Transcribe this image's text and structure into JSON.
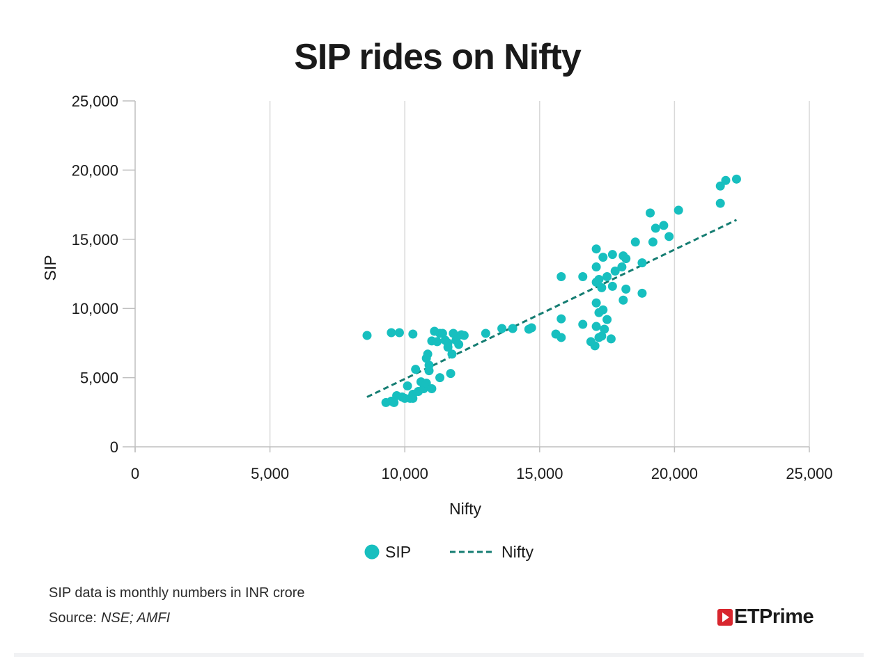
{
  "chart_data": {
    "type": "scatter",
    "title": "SIP rides on Nifty",
    "xlabel": "Nifty",
    "ylabel": "SIP",
    "xlim": [
      0,
      25000
    ],
    "ylim": [
      0,
      25000
    ],
    "x_ticks": [
      0,
      5000,
      10000,
      15000,
      20000,
      25000
    ],
    "y_ticks": [
      0,
      5000,
      10000,
      15000,
      20000,
      25000
    ],
    "x_tick_labels": [
      "0",
      "5,000",
      "10,000",
      "15,000",
      "20,000",
      "25,000"
    ],
    "y_tick_labels": [
      "0",
      "5,000",
      "10,000",
      "15,000",
      "20,000",
      "25,000"
    ],
    "grid": "vertical",
    "legend": {
      "position": "bottom-center",
      "entries": [
        "SIP",
        "Nifty"
      ]
    },
    "series": [
      {
        "name": "SIP",
        "kind": "scatter",
        "color": "#17bfbf",
        "points": [
          [
            8600,
            8050
          ],
          [
            9500,
            8250
          ],
          [
            9800,
            8250
          ],
          [
            10300,
            8150
          ],
          [
            9300,
            3200
          ],
          [
            9500,
            3300
          ],
          [
            9600,
            3200
          ],
          [
            9700,
            3700
          ],
          [
            9900,
            3600
          ],
          [
            10000,
            3500
          ],
          [
            10100,
            4400
          ],
          [
            10200,
            3500
          ],
          [
            10300,
            3800
          ],
          [
            10300,
            3500
          ],
          [
            10400,
            5600
          ],
          [
            10500,
            4000
          ],
          [
            10600,
            4700
          ],
          [
            10700,
            4200
          ],
          [
            10800,
            4600
          ],
          [
            10900,
            5500
          ],
          [
            10900,
            5900
          ],
          [
            10800,
            6400
          ],
          [
            10850,
            6700
          ],
          [
            11000,
            4200
          ],
          [
            11000,
            7650
          ],
          [
            11100,
            8350
          ],
          [
            11200,
            7600
          ],
          [
            11300,
            8200
          ],
          [
            11400,
            8200
          ],
          [
            11300,
            5000
          ],
          [
            11500,
            7700
          ],
          [
            11600,
            7500
          ],
          [
            11600,
            7200
          ],
          [
            11700,
            5300
          ],
          [
            11750,
            6700
          ],
          [
            11800,
            8200
          ],
          [
            11900,
            7700
          ],
          [
            12000,
            7400
          ],
          [
            12100,
            8100
          ],
          [
            12200,
            8050
          ],
          [
            13000,
            8200
          ],
          [
            13600,
            8550
          ],
          [
            14000,
            8550
          ],
          [
            14600,
            8500
          ],
          [
            14700,
            8600
          ],
          [
            15600,
            8150
          ],
          [
            15800,
            7900
          ],
          [
            15800,
            9250
          ],
          [
            15800,
            12300
          ],
          [
            16600,
            8850
          ],
          [
            16600,
            12300
          ],
          [
            16900,
            7600
          ],
          [
            17050,
            7300
          ],
          [
            17100,
            10400
          ],
          [
            17100,
            8700
          ],
          [
            17100,
            13000
          ],
          [
            17100,
            14300
          ],
          [
            17100,
            11900
          ],
          [
            17200,
            12100
          ],
          [
            17200,
            9700
          ],
          [
            17200,
            7900
          ],
          [
            17300,
            11500
          ],
          [
            17300,
            8000
          ],
          [
            17350,
            13700
          ],
          [
            17350,
            9900
          ],
          [
            17400,
            8500
          ],
          [
            17500,
            12300
          ],
          [
            17500,
            9200
          ],
          [
            17650,
            7800
          ],
          [
            17700,
            13900
          ],
          [
            17700,
            11600
          ],
          [
            17800,
            12700
          ],
          [
            18050,
            13000
          ],
          [
            18100,
            10600
          ],
          [
            18100,
            13800
          ],
          [
            18200,
            11400
          ],
          [
            18200,
            13600
          ],
          [
            18550,
            14800
          ],
          [
            18800,
            13300
          ],
          [
            18800,
            11100
          ],
          [
            19100,
            16900
          ],
          [
            19200,
            14800
          ],
          [
            19300,
            15800
          ],
          [
            19600,
            16000
          ],
          [
            19800,
            15200
          ],
          [
            20150,
            17100
          ],
          [
            21700,
            18850
          ],
          [
            21700,
            17600
          ],
          [
            21900,
            19250
          ],
          [
            22300,
            19350
          ]
        ]
      },
      {
        "name": "Nifty",
        "kind": "trendline",
        "style": "dashed",
        "color": "#157d72",
        "start": [
          8600,
          3600
        ],
        "end": [
          22300,
          16400
        ]
      }
    ]
  },
  "notes": {
    "line1": "SIP data is monthly numbers in INR crore",
    "source_label": "Source:",
    "source_value": "NSE; AMFI"
  },
  "brand": {
    "name": "ETPrime"
  }
}
